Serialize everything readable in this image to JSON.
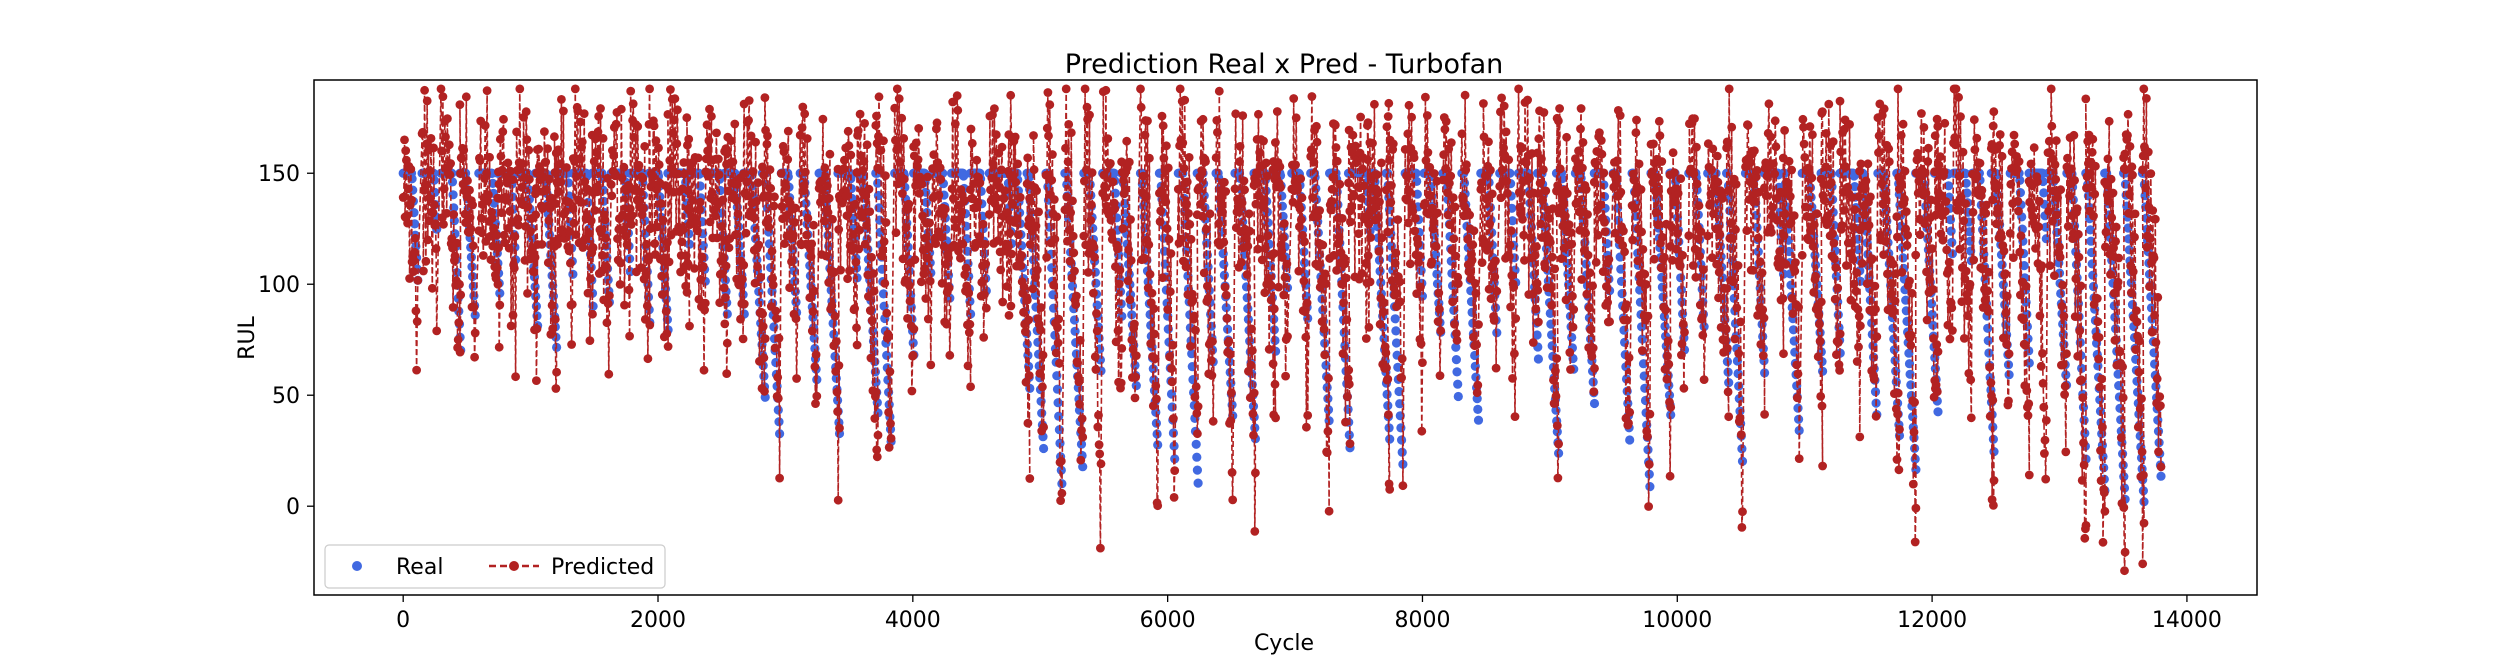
{
  "chart_data": {
    "type": "line",
    "title": "Prediction Real x Pred - Turbofan",
    "xlabel": "Cycle",
    "ylabel": "RUL",
    "xlim": [
      -700,
      14550
    ],
    "ylim": [
      -40,
      192
    ],
    "xticks": [
      0,
      2000,
      4000,
      6000,
      8000,
      10000,
      12000,
      14000
    ],
    "yticks": [
      0,
      50,
      100,
      150
    ],
    "grid": false,
    "legend_position": "lower-left",
    "colors": {
      "real": "#4169e1",
      "predicted": "#b22222"
    },
    "series": [
      {
        "name": "Real",
        "style": "markers",
        "segment_mins": [
          98,
          120,
          70,
          82,
          95,
          110,
          78,
          70,
          100,
          85,
          88,
          105,
          80,
          75,
          118,
          100,
          82,
          84,
          48,
          28,
          85,
          55,
          30,
          100,
          38,
          25,
          65,
          102,
          90,
          85,
          95,
          115,
          50,
          22,
          5,
          15,
          60,
          82,
          50,
          25,
          18,
          10,
          60,
          40,
          30,
          68,
          95,
          80,
          35,
          25,
          120,
          28,
          18,
          90,
          75,
          45,
          35,
          75,
          100,
          65,
          20,
          60,
          45,
          95,
          25,
          5,
          40,
          65,
          80,
          55,
          20,
          60,
          100,
          30,
          60,
          65,
          100,
          38,
          28,
          15,
          40,
          110,
          110,
          20,
          55,
          60,
          120,
          50,
          20,
          5,
          2,
          0,
          0
        ]
      },
      {
        "name": "Predicted",
        "style": "dashed-line-with-markers",
        "segment_mins": [
          70,
          95,
          75,
          82,
          88,
          95,
          80,
          72,
          100,
          90,
          90,
          100,
          88,
          85,
          100,
          85,
          80,
          80,
          45,
          25,
          85,
          50,
          20,
          95,
          10,
          15,
          62,
          92,
          80,
          72,
          80,
          105,
          40,
          15,
          0,
          -10,
          -5,
          50,
          25,
          5,
          15,
          25,
          40,
          15,
          18,
          60,
          70,
          50,
          10,
          25,
          100,
          30,
          20,
          60,
          70,
          70,
          45,
          60,
          65,
          80,
          20,
          65,
          55,
          75,
          10,
          5,
          35,
          65,
          60,
          50,
          10,
          62,
          85,
          30,
          45,
          70,
          55,
          40,
          15,
          10,
          40,
          80,
          55,
          0,
          60,
          30,
          5,
          40,
          -30,
          -25,
          -15,
          -25,
          -20
        ]
      }
    ]
  }
}
